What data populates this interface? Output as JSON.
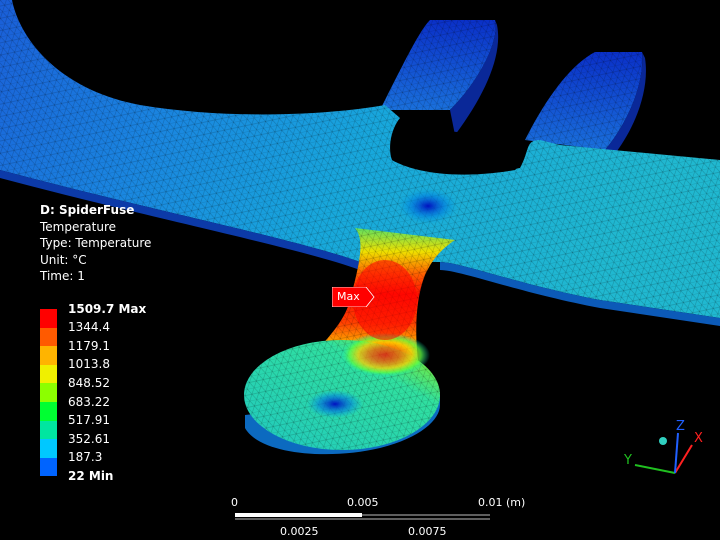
{
  "model": {
    "title": "D: SpiderFuse",
    "result": "Temperature",
    "type": "Type: Temperature",
    "unit": "Unit: °C",
    "time": "Time: 1"
  },
  "legend": {
    "max_label": "1509.7 Max",
    "min_label": "22 Min",
    "levels": [
      "1344.4",
      "1179.1",
      "1013.8",
      "848.52",
      "683.22",
      "517.91",
      "352.61",
      "187.3"
    ],
    "colors": [
      "#ff0000",
      "#ff5a00",
      "#ffb400",
      "#f0f000",
      "#8cff00",
      "#00ff32",
      "#00e6a0",
      "#00c8ff",
      "#0064ff",
      "#0000ff"
    ]
  },
  "probe": {
    "max_tag": "Max",
    "max_color": "#ff0000"
  },
  "scale_bar": {
    "top_labels": [
      "0",
      "0.005",
      "0.01 (m)"
    ],
    "bottom_labels": [
      "0.0025",
      "0.0075"
    ]
  },
  "triad": {
    "x": "X",
    "y": "Y",
    "z": "Z",
    "x_color": "#ff2020",
    "y_color": "#20c020",
    "z_color": "#2060ff"
  }
}
